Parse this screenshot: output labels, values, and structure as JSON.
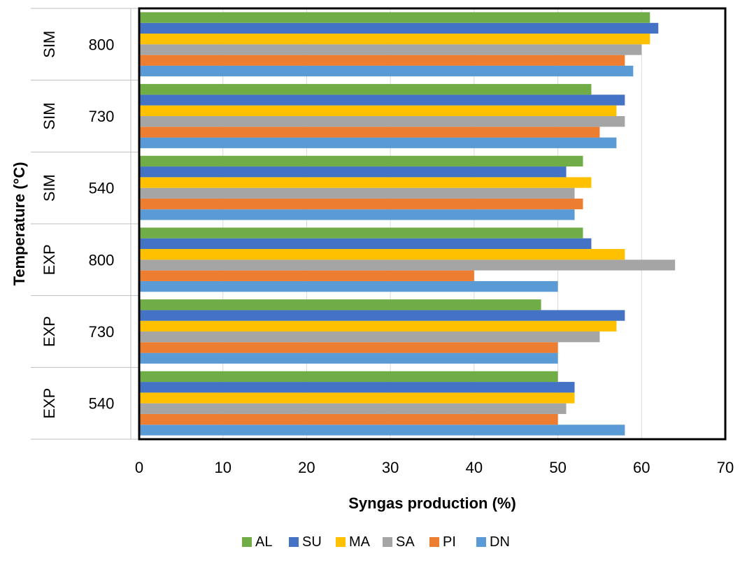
{
  "chart_data": {
    "type": "bar",
    "orientation": "horizontal",
    "xlabel": "Syngas production (%)",
    "ylabel": "Temperature (°C)",
    "xlim": [
      0,
      70
    ],
    "xticks": [
      0,
      10,
      20,
      30,
      40,
      50,
      60,
      70
    ],
    "grid": "vertical gridlines",
    "legend_position": "bottom",
    "categories": [
      {
        "group": "EXP",
        "temp": "540"
      },
      {
        "group": "EXP",
        "temp": "730"
      },
      {
        "group": "EXP",
        "temp": "800"
      },
      {
        "group": "SIM",
        "temp": "540"
      },
      {
        "group": "SIM",
        "temp": "730"
      },
      {
        "group": "SIM",
        "temp": "800"
      }
    ],
    "series": [
      {
        "name": "DN",
        "color": "#5B9BD5",
        "values": [
          58,
          50,
          50,
          52,
          57,
          59
        ]
      },
      {
        "name": "PI",
        "color": "#ED7D31",
        "values": [
          50,
          50,
          40,
          53,
          55,
          58
        ]
      },
      {
        "name": "SA",
        "color": "#A5A5A5",
        "values": [
          51,
          55,
          64,
          52,
          58,
          60
        ]
      },
      {
        "name": "MA",
        "color": "#FFC000",
        "values": [
          52,
          57,
          58,
          54,
          57,
          61
        ]
      },
      {
        "name": "SU",
        "color": "#4472C4",
        "values": [
          52,
          58,
          54,
          51,
          58,
          62
        ]
      },
      {
        "name": "AL",
        "color": "#70AD47",
        "values": [
          50,
          48,
          53,
          53,
          54,
          61
        ]
      }
    ],
    "legend_order": [
      "AL",
      "SU",
      "MA",
      "SA",
      "PI",
      "DN"
    ]
  }
}
